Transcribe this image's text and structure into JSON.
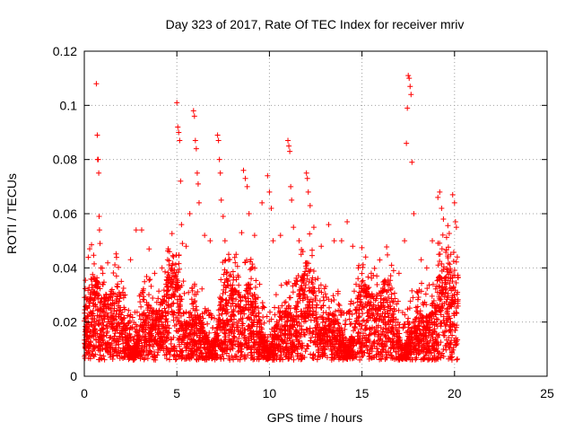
{
  "chart_data": {
    "type": "scatter",
    "title": "Day 323 of 2017, Rate Of TEC Index for receiver mriv",
    "xlabel": "GPS time / hours",
    "ylabel": "ROTI / TECUs",
    "xlim": [
      0,
      25
    ],
    "ylim": [
      0,
      0.12
    ],
    "x_ticks": [
      0,
      5,
      10,
      15,
      20,
      25
    ],
    "y_ticks": [
      0,
      0.02,
      0.04,
      0.06,
      0.08,
      0.1,
      0.12
    ],
    "x_tick_labels": [
      "0",
      "5",
      "10",
      "15",
      "20",
      "25"
    ],
    "y_tick_labels": [
      "0",
      "0.02",
      "0.04",
      "0.06",
      "0.08",
      "0.1",
      "0.12"
    ],
    "grid": true,
    "marker": "plus",
    "color": "#ff0000",
    "series": [
      {
        "values_note": "",
        "points": [
          [
            0.05,
            0.012
          ],
          [
            0.1,
            0.018
          ],
          [
            0.2,
            0.022
          ],
          [
            0.3,
            0.015
          ],
          [
            0.4,
            0.02
          ],
          [
            0.5,
            0.028
          ],
          [
            0.6,
            0.035
          ],
          [
            0.65,
            0.108
          ],
          [
            0.7,
            0.089
          ],
          [
            0.72,
            0.08
          ],
          [
            0.75,
            0.08
          ],
          [
            0.78,
            0.075
          ],
          [
            0.8,
            0.059
          ],
          [
            0.82,
            0.054
          ],
          [
            0.85,
            0.049
          ],
          [
            0.9,
            0.04
          ],
          [
            1.0,
            0.038
          ],
          [
            1.2,
            0.03
          ],
          [
            1.5,
            0.032
          ],
          [
            1.8,
            0.034
          ],
          [
            2.0,
            0.035
          ],
          [
            2.2,
            0.03
          ],
          [
            2.5,
            0.043
          ],
          [
            2.8,
            0.054
          ],
          [
            3.1,
            0.054
          ],
          [
            3.5,
            0.047
          ],
          [
            3.8,
            0.038
          ],
          [
            4.2,
            0.04
          ],
          [
            4.5,
            0.043
          ],
          [
            4.6,
            0.046
          ],
          [
            5.0,
            0.101
          ],
          [
            5.05,
            0.092
          ],
          [
            5.1,
            0.09
          ],
          [
            5.15,
            0.087
          ],
          [
            5.2,
            0.072
          ],
          [
            5.25,
            0.056
          ],
          [
            5.3,
            0.049
          ],
          [
            5.5,
            0.048
          ],
          [
            5.7,
            0.06
          ],
          [
            5.9,
            0.098
          ],
          [
            5.95,
            0.096
          ],
          [
            6.0,
            0.087
          ],
          [
            6.05,
            0.084
          ],
          [
            6.1,
            0.075
          ],
          [
            6.15,
            0.071
          ],
          [
            6.2,
            0.064
          ],
          [
            6.5,
            0.052
          ],
          [
            6.8,
            0.05
          ],
          [
            7.2,
            0.089
          ],
          [
            7.25,
            0.087
          ],
          [
            7.3,
            0.08
          ],
          [
            7.35,
            0.075
          ],
          [
            7.4,
            0.065
          ],
          [
            7.5,
            0.059
          ],
          [
            7.6,
            0.05
          ],
          [
            7.8,
            0.045
          ],
          [
            8.2,
            0.045
          ],
          [
            8.5,
            0.053
          ],
          [
            8.6,
            0.076
          ],
          [
            8.7,
            0.073
          ],
          [
            8.8,
            0.07
          ],
          [
            8.9,
            0.06
          ],
          [
            9.2,
            0.052
          ],
          [
            9.6,
            0.064
          ],
          [
            9.9,
            0.074
          ],
          [
            10.0,
            0.068
          ],
          [
            10.1,
            0.062
          ],
          [
            10.2,
            0.05
          ],
          [
            10.6,
            0.052
          ],
          [
            11.0,
            0.087
          ],
          [
            11.05,
            0.085
          ],
          [
            11.1,
            0.083
          ],
          [
            11.15,
            0.07
          ],
          [
            11.2,
            0.065
          ],
          [
            11.3,
            0.055
          ],
          [
            11.6,
            0.05
          ],
          [
            12.0,
            0.075
          ],
          [
            12.05,
            0.073
          ],
          [
            12.1,
            0.068
          ],
          [
            12.2,
            0.063
          ],
          [
            12.4,
            0.055
          ],
          [
            12.8,
            0.048
          ],
          [
            13.2,
            0.056
          ],
          [
            13.5,
            0.05
          ],
          [
            13.9,
            0.05
          ],
          [
            14.2,
            0.057
          ],
          [
            14.5,
            0.048
          ],
          [
            14.8,
            0.04
          ],
          [
            15.2,
            0.044
          ],
          [
            15.5,
            0.038
          ],
          [
            15.8,
            0.037
          ],
          [
            16.2,
            0.035
          ],
          [
            16.6,
            0.041
          ],
          [
            17.0,
            0.038
          ],
          [
            17.3,
            0.05
          ],
          [
            17.4,
            0.086
          ],
          [
            17.45,
            0.099
          ],
          [
            17.5,
            0.111
          ],
          [
            17.55,
            0.11
          ],
          [
            17.6,
            0.107
          ],
          [
            17.65,
            0.104
          ],
          [
            17.7,
            0.079
          ],
          [
            17.8,
            0.06
          ],
          [
            18.2,
            0.043
          ],
          [
            18.5,
            0.04
          ],
          [
            18.8,
            0.05
          ],
          [
            19.1,
            0.066
          ],
          [
            19.2,
            0.068
          ],
          [
            19.3,
            0.062
          ],
          [
            19.4,
            0.058
          ],
          [
            19.8,
            0.045
          ],
          [
            19.9,
            0.067
          ],
          [
            20.0,
            0.064
          ],
          [
            20.05,
            0.057
          ],
          [
            20.1,
            0.055
          ],
          [
            20.15,
            0.044
          ]
        ]
      }
    ]
  }
}
